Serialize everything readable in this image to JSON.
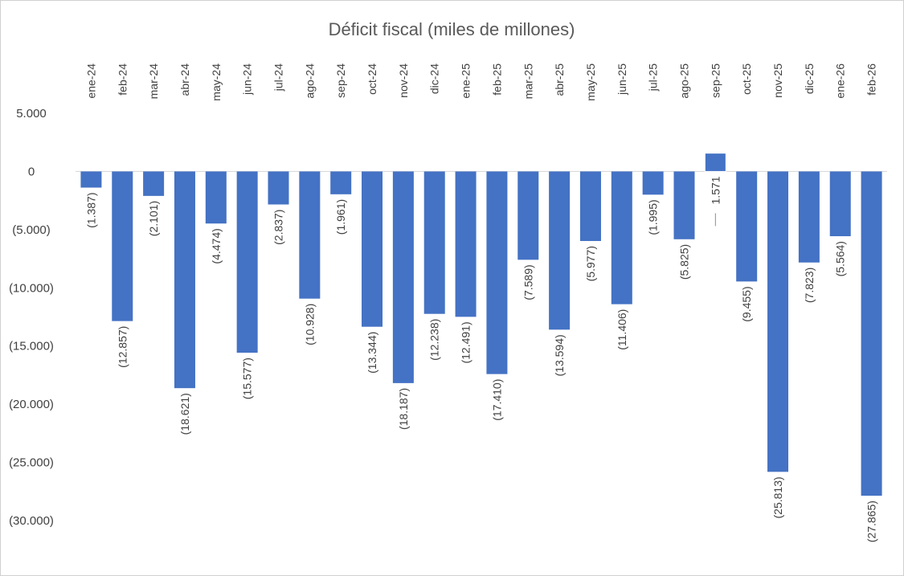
{
  "chart_data": {
    "type": "bar",
    "title": "Déficit fiscal (miles de millones)",
    "xlabel": "",
    "ylabel": "",
    "ylim": [
      -30000,
      5000
    ],
    "yticks": [
      5000,
      0,
      -5000,
      -10000,
      -15000,
      -20000,
      -25000,
      -30000
    ],
    "ytick_labels": [
      "5.000",
      "0",
      "(5.000)",
      "(10.000)",
      "(15.000)",
      "(20.000)",
      "(25.000)",
      "(30.000)"
    ],
    "categories": [
      "ene-24",
      "feb-24",
      "mar-24",
      "abr-24",
      "may-24",
      "jun-24",
      "jul-24",
      "ago-24",
      "sep-24",
      "oct-24",
      "nov-24",
      "dic-24",
      "ene-25",
      "feb-25",
      "mar-25",
      "abr-25",
      "may-25",
      "jun-25",
      "jul-25",
      "ago-25",
      "sep-25",
      "oct-25",
      "nov-25",
      "dic-25",
      "ene-26",
      "feb-26"
    ],
    "values": [
      -1387,
      -12857,
      -2101,
      -18621,
      -4474,
      -15577,
      -2837,
      -10928,
      -1961,
      -13344,
      -18187,
      -12238,
      -12491,
      -17410,
      -7589,
      -13594,
      -5977,
      -11406,
      -1995,
      -5825,
      1571,
      -9455,
      -25813,
      -7823,
      -5564,
      -27865
    ],
    "data_labels": [
      "(1.387)",
      "(12.857)",
      "(2.101)",
      "(18.621)",
      "(4.474)",
      "(15.577)",
      "(2.837)",
      "(10.928)",
      "(1.961)",
      "(13.344)",
      "(18.187)",
      "(12.238)",
      "(12.491)",
      "(17.410)",
      "(7.589)",
      "(13.594)",
      "(5.977)",
      "(11.406)",
      "(1.995)",
      "(5.825)",
      "1.571",
      "(9.455)",
      "(25.813)",
      "(7.823)",
      "(5.564)",
      "(27.865)"
    ],
    "grid": false,
    "legend": "none",
    "bar_color": "#4472C4"
  }
}
